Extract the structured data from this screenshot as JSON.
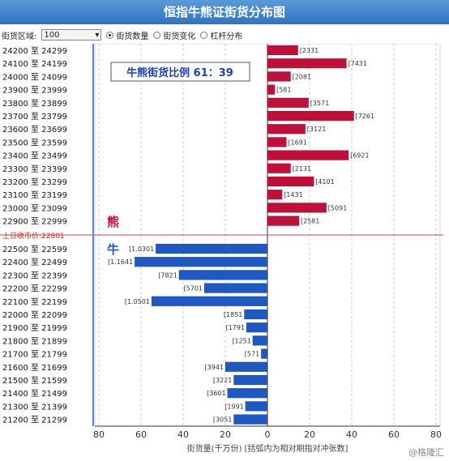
{
  "header": {
    "title": "恒指牛熊证街货分布图"
  },
  "controls": {
    "zone_label": "街货区域:",
    "zone_value": "100",
    "options": [
      {
        "label": "街货数量",
        "selected": true
      },
      {
        "label": "街货变化",
        "selected": false
      },
      {
        "label": "杠杆分布",
        "selected": false
      }
    ]
  },
  "ratio_box": {
    "text": "牛熊街货比例 61：39"
  },
  "labels": {
    "bear": "熊",
    "bull": "牛"
  },
  "watermark": "@格隆汇",
  "colors": {
    "bear": "#c0103a",
    "bull": "#1f57c3",
    "close_line": "#e04040",
    "frame": "#2b5bb8"
  },
  "chart_data": {
    "type": "bar",
    "orientation": "horizontal",
    "xlabel": "街货量(千万份) [括弧内为相对期指对冲张数]",
    "xlim": [
      -80,
      80
    ],
    "x_tick_labels": [
      "80",
      "60",
      "40",
      "20",
      "0",
      "20",
      "40",
      "60",
      "80"
    ],
    "close_line_label": "上日收市价:22801",
    "series": [
      {
        "name": "熊",
        "color": "#c0103a",
        "categories": [
          "24200 至 24299",
          "24100 至 24199",
          "24000 至 24099",
          "23900 至 23999",
          "23800 至 23899",
          "23700 至 23799",
          "23600 至 23699",
          "23500 至 23599",
          "23400 至 23499",
          "23300 至 23399",
          "23200 至 23299",
          "23100 至 23199",
          "23000 至 23099",
          "22900 至 22999"
        ],
        "values": [
          14.5,
          37.5,
          11,
          3.5,
          19.5,
          41,
          18,
          9,
          38.5,
          11,
          22,
          7,
          28,
          15
        ],
        "labels": [
          "[2331",
          "[7431",
          "[2081",
          "[581",
          "[3571",
          "[7261",
          "[3121",
          "[1691",
          "[6921",
          "[2131",
          "[4101",
          "[1431",
          "[5091",
          "[2581"
        ]
      },
      {
        "name": "牛",
        "color": "#1f57c3",
        "categories": [
          "22500 至 22599",
          "22400 至 22499",
          "22300 至 22399",
          "22200 至 22299",
          "22100 至 22199",
          "22000 至 22099",
          "21900 至 21999",
          "21800 至 21899",
          "21700 至 21799",
          "21600 至 21699",
          "21500 至 21599",
          "21400 至 21499",
          "21300 至 21399",
          "21200 至 21299"
        ],
        "values": [
          53,
          63,
          42,
          30,
          55,
          11,
          10,
          7,
          3,
          20,
          16,
          19,
          10.5,
          16
        ],
        "labels": [
          "[1.0301",
          "[1.1641",
          "[7821",
          "[5701",
          "[1.0501",
          "[1851",
          "[1791",
          "[1251",
          "[571",
          "[3941",
          "[3221",
          "[3601",
          "[1991",
          "[3051"
        ]
      }
    ]
  }
}
